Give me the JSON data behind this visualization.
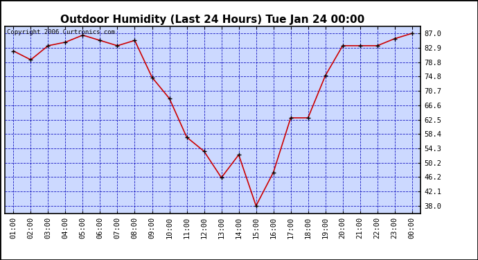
{
  "title": "Outdoor Humidity (Last 24 Hours) Tue Jan 24 00:00",
  "copyright": "Copyright 2006 Curtronics.com",
  "x_labels": [
    "01:00",
    "02:00",
    "03:00",
    "04:00",
    "05:00",
    "06:00",
    "07:00",
    "08:00",
    "09:00",
    "10:00",
    "11:00",
    "12:00",
    "13:00",
    "14:00",
    "15:00",
    "16:00",
    "17:00",
    "18:00",
    "19:00",
    "20:00",
    "21:00",
    "22:00",
    "23:00",
    "00:00"
  ],
  "y_values": [
    82.0,
    79.5,
    83.5,
    84.5,
    86.5,
    85.0,
    83.5,
    85.0,
    74.5,
    68.5,
    57.5,
    53.5,
    46.0,
    52.5,
    38.0,
    47.5,
    63.0,
    63.0,
    75.0,
    83.5,
    83.5,
    83.5,
    85.5,
    87.0
  ],
  "y_ticks": [
    38.0,
    42.1,
    46.2,
    50.2,
    54.3,
    58.4,
    62.5,
    66.6,
    70.7,
    74.8,
    78.8,
    82.9,
    87.0
  ],
  "ylim_min": 35.9,
  "ylim_max": 89.1,
  "line_color": "#cc0000",
  "marker_color": "#000000",
  "bg_color": "#ccd9ff",
  "fig_bg_color": "#ffffff",
  "grid_color": "#0000bb",
  "title_fontsize": 11,
  "axis_label_fontsize": 7.5,
  "copyright_fontsize": 6.5
}
